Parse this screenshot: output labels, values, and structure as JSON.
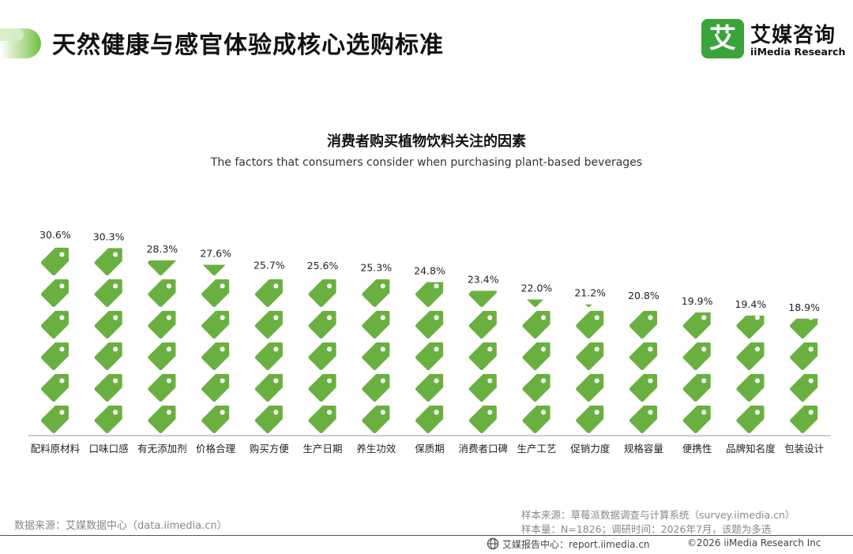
{
  "header": {
    "title": "天然健康与感官体验成核心选购标准",
    "logo_mark": "艾",
    "logo_cn": "艾媒咨询",
    "logo_en": "iiMedia Research"
  },
  "colors": {
    "accent": "#6cb33f",
    "tag_fill": "#6ab041",
    "text": "#222222"
  },
  "chart_data": {
    "type": "bar",
    "style": "pictograph",
    "title": "消费者购买植物饮料关注的因素",
    "subtitle": "The factors that consumers consider when purchasing plant-based beverages",
    "categories": [
      "配料原材料",
      "口味口感",
      "有无添加剂",
      "价格合理",
      "购买方便",
      "生产日期",
      "养生功效",
      "保质期",
      "消费者口碑",
      "生产工艺",
      "促销力度",
      "规格容量",
      "便携性",
      "品牌知名度",
      "包装设计"
    ],
    "values": [
      30.6,
      30.3,
      28.3,
      27.6,
      25.7,
      25.6,
      25.3,
      24.8,
      23.4,
      22.0,
      21.2,
      20.8,
      19.9,
      19.4,
      18.9
    ],
    "value_labels": [
      "30.6%",
      "30.3%",
      "28.3%",
      "27.6%",
      "25.7%",
      "25.6%",
      "25.3%",
      "24.8%",
      "23.4%",
      "22.0%",
      "21.2%",
      "20.8%",
      "19.9%",
      "19.4%",
      "18.9%"
    ],
    "unit": "%",
    "ylim": [
      0,
      30.6
    ],
    "grid": false,
    "legend": "none"
  },
  "footer": {
    "source_left": "数据来源：艾媒数据中心（data.iimedia.cn）",
    "sample_source": "样本来源：草莓派数据调查与计算系统（survey.iimedia.cn）",
    "sample_size": "样本量：N=1826；调研时间：2026年7月，该题为多选",
    "report_center": "艾媒报告中心：report.iimedia.cn",
    "copyright": "©2026  iiMedia Research  Inc"
  }
}
